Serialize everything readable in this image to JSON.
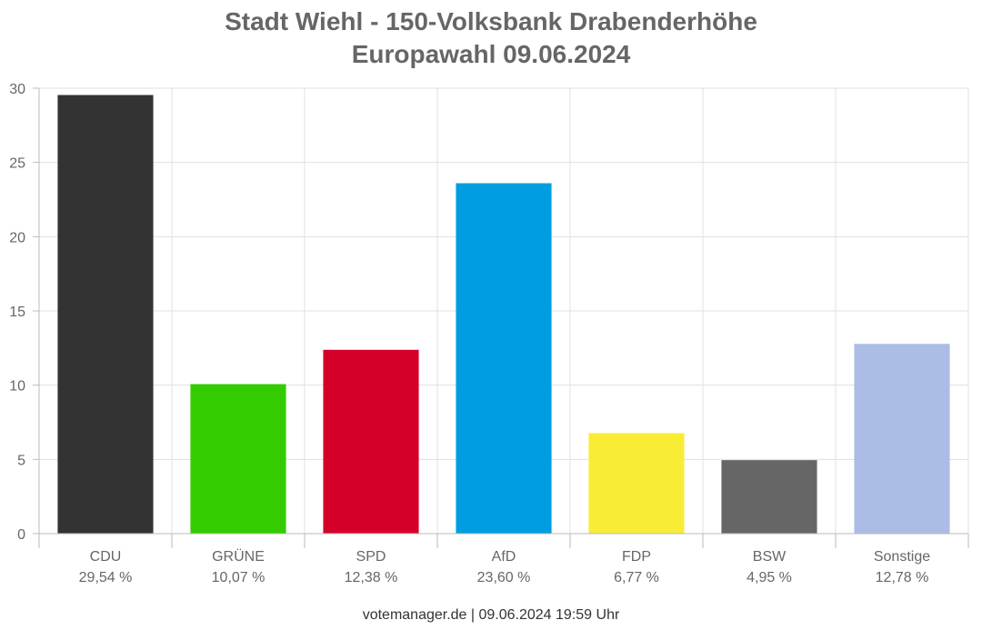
{
  "chart_data": {
    "type": "bar",
    "title": "Stadt Wiehl - 150-Volksbank Drabenderhöhe",
    "subtitle": "Europawahl 09.06.2024",
    "categories": [
      "CDU",
      "GRÜNE",
      "SPD",
      "AfD",
      "FDP",
      "BSW",
      "Sonstige"
    ],
    "values": [
      29.54,
      10.07,
      12.38,
      23.6,
      6.77,
      4.95,
      12.78
    ],
    "value_labels": [
      "29,54 %",
      "10,07 %",
      "12,38 %",
      "23,60 %",
      "6,77 %",
      "4,95 %",
      "12,78 %"
    ],
    "colors": [
      "#333333",
      "#33cc00",
      "#d5002a",
      "#009ee0",
      "#f9ec35",
      "#666666",
      "#abbde6"
    ],
    "yticks": [
      0,
      5,
      10,
      15,
      20,
      25,
      30
    ],
    "ylim": [
      0,
      30
    ],
    "grid": true,
    "xlabel": "",
    "ylabel": ""
  },
  "footer": "votemanager.de | 09.06.2024 19:59 Uhr"
}
